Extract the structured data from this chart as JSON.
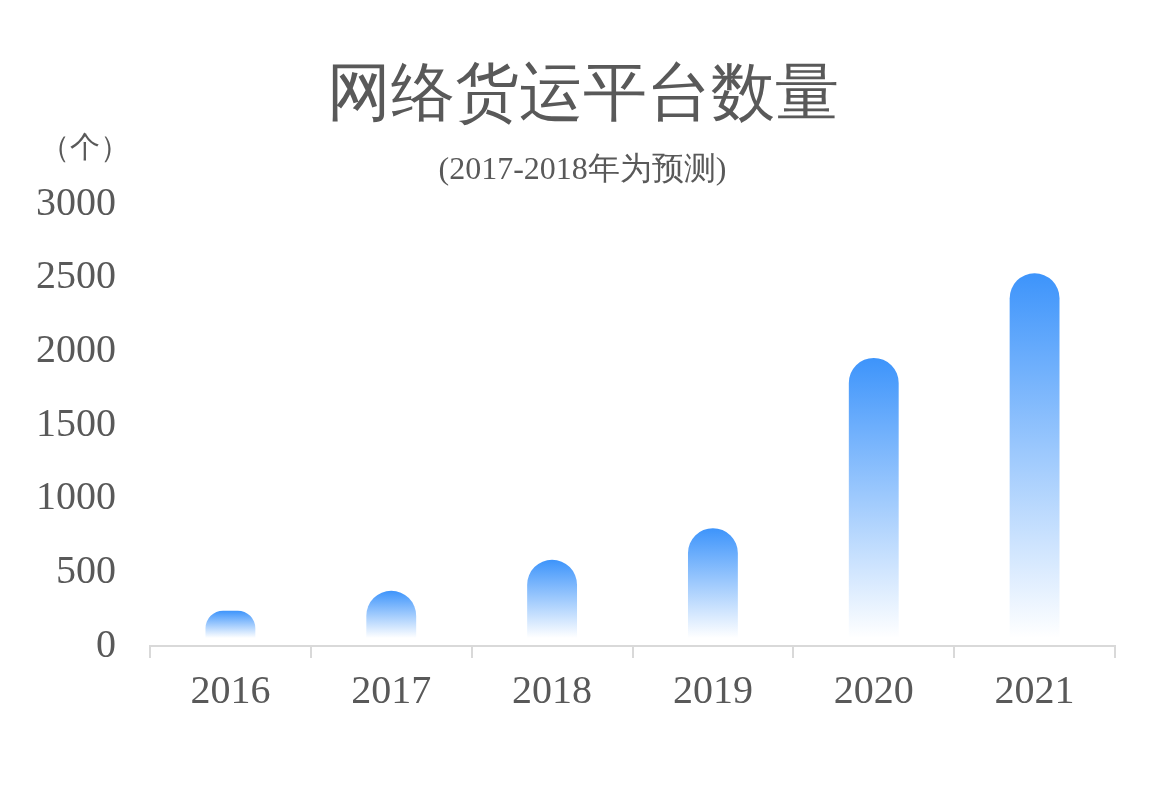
{
  "chart_data": {
    "type": "bar",
    "title": "网络货运平台数量",
    "subtitle": "(2017-2018年为预测)",
    "ylabel": "（个）",
    "categories": [
      "2016",
      "2017",
      "2018",
      "2019",
      "2020",
      "2021"
    ],
    "values": [
      240,
      375,
      585,
      800,
      1955,
      2530
    ],
    "color": "#3d94fb",
    "ylim": [
      0,
      3000
    ],
    "yticks": [
      0,
      500,
      1000,
      1500,
      2000,
      2500,
      3000
    ],
    "grid": false,
    "legend": false
  }
}
